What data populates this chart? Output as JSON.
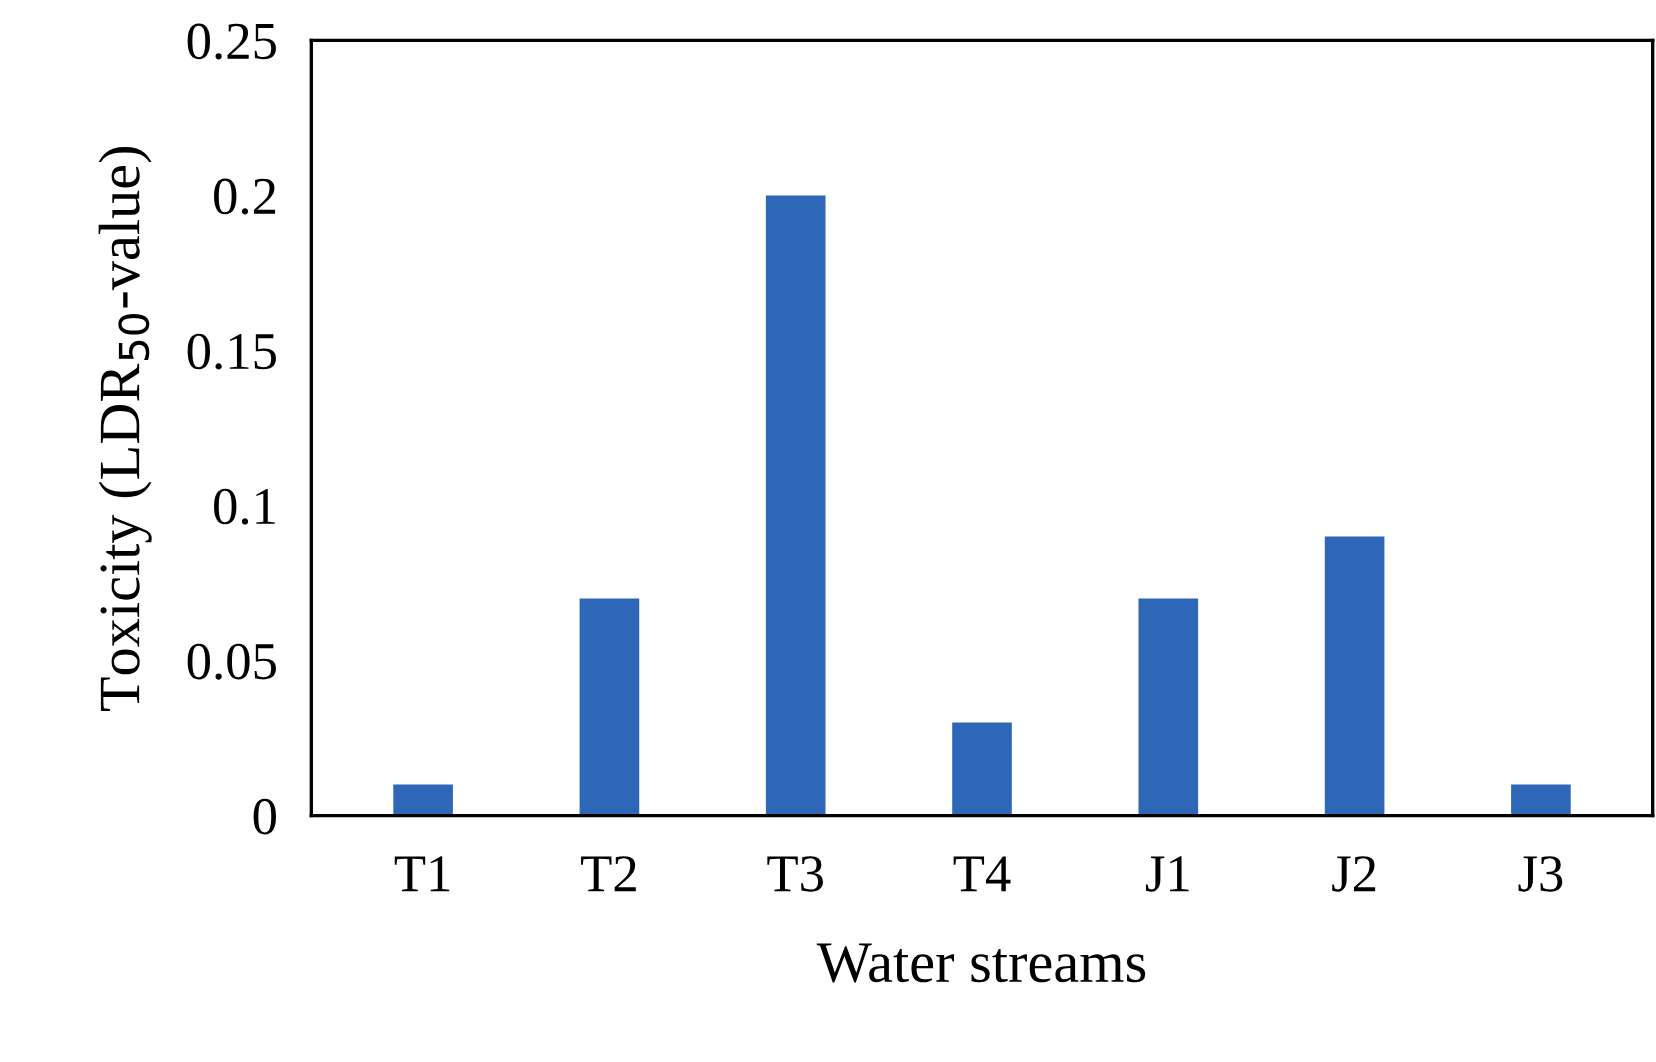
{
  "chart_data": {
    "type": "bar",
    "xlabel": "Water streams",
    "ylabel": "Toxicity (LDR$_{50}$-value)",
    "categories": [
      "T1",
      "T2",
      "T3",
      "T4",
      "J1",
      "J2",
      "J3"
    ],
    "values": [
      0.01,
      0.07,
      0.2,
      0.03,
      0.07,
      0.09,
      0.01
    ],
    "color": "#2e67b8",
    "ylim": [
      0,
      0.25
    ],
    "yticks": [
      {
        "value": 0,
        "label": "0"
      },
      0.05,
      0.1,
      0.15,
      0.2,
      0.25
    ],
    "grid": false
  }
}
